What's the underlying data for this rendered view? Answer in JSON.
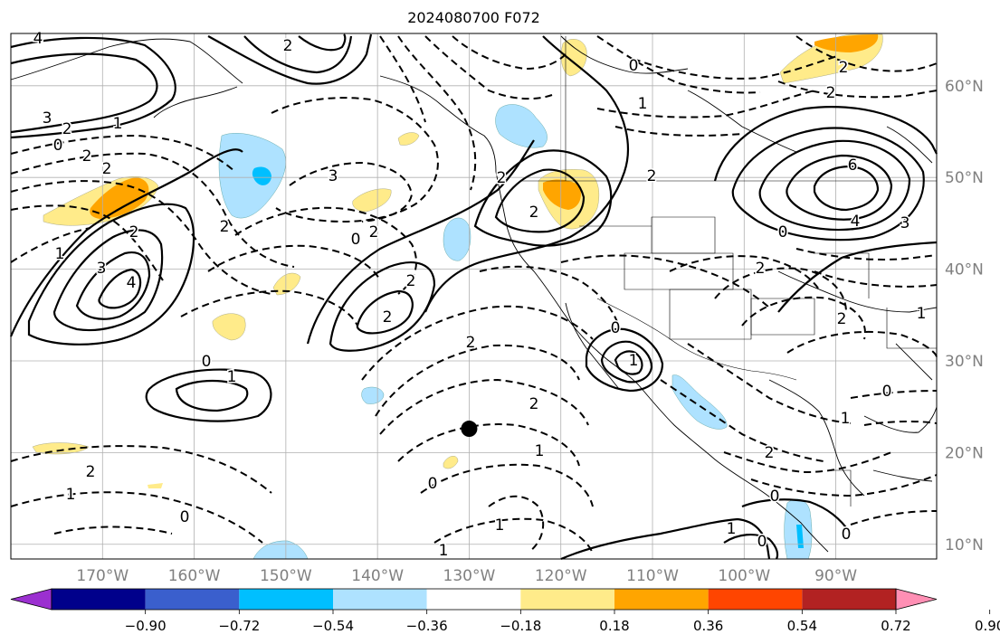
{
  "title": "2024080700 F072",
  "longitude_labels": [
    "170°W",
    "160°W",
    "150°W",
    "140°W",
    "130°W",
    "120°W",
    "110°W",
    "100°W",
    "90°W"
  ],
  "latitude_labels": [
    "60°N",
    "50°N",
    "40°N",
    "30°N",
    "20°N",
    "10°N"
  ],
  "colorbar": {
    "tick_labels": [
      "−0.90",
      "−0.72",
      "−0.54",
      "−0.36",
      "−0.18",
      "0.18",
      "0.36",
      "0.54",
      "0.72",
      "0.90"
    ],
    "colors": [
      "#9b30d0",
      "#00008b",
      "#3a5fcd",
      "#00bfff",
      "#aee2ff",
      "#ffffff",
      "#ffeb8a",
      "#ffa500",
      "#ff4500",
      "#b22222",
      "#ff8fb4"
    ]
  },
  "shading_colors": {
    "light_blue": "#aee2ff",
    "blue": "#00bfff",
    "yellow": "#ffeb8a",
    "orange": "#ffa500"
  },
  "marker": {
    "label": "storm-center",
    "lon": -130,
    "lat": 22.6
  },
  "contour_labels": [
    "4",
    "2",
    "3",
    "2",
    "1",
    "0",
    "2",
    "2",
    "3",
    "1",
    "4",
    "3",
    "2",
    "0",
    "2",
    "0",
    "2",
    "2",
    "2",
    "1",
    "0",
    "1",
    "2",
    "2",
    "2",
    "2",
    "6",
    "4",
    "3",
    "2",
    "0",
    "2",
    "2",
    "0",
    "1",
    "2",
    "0",
    "1",
    "0",
    "1",
    "2",
    "1",
    "0",
    "1",
    "0",
    "1",
    "1",
    "0",
    "0",
    "2",
    "1",
    "2"
  ]
}
